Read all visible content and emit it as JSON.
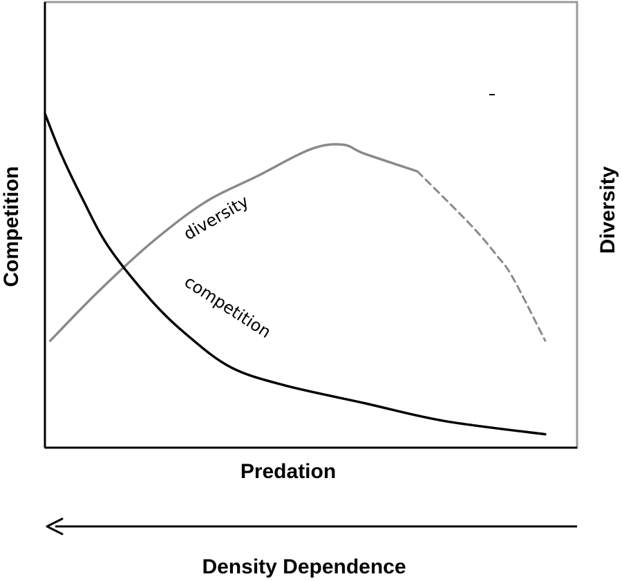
{
  "chart_data": {
    "type": "line",
    "title": "",
    "xlabel": "Predation",
    "ylabel_left": "Competition",
    "ylabel_right": "Diversity",
    "xlim": [
      0,
      1
    ],
    "ylim": [
      0,
      1
    ],
    "grid": false,
    "legend": "none",
    "annotation": "Density Dependence",
    "series": [
      {
        "name": "diversity",
        "color": "#8a8a8a",
        "x": [
          0.01,
          0.1,
          0.2,
          0.3,
          0.4,
          0.5,
          0.56,
          0.6,
          0.7,
          0.8,
          0.85,
          0.88,
          0.94
        ],
        "y": [
          0.24,
          0.35,
          0.46,
          0.55,
          0.61,
          0.67,
          0.68,
          0.66,
          0.62,
          0.5,
          0.43,
          0.38,
          0.24
        ]
      },
      {
        "name": "competition",
        "color": "#000000",
        "x": [
          0.0,
          0.03,
          0.07,
          0.12,
          0.2,
          0.27,
          0.35,
          0.45,
          0.6,
          0.75,
          0.94
        ],
        "y": [
          0.75,
          0.66,
          0.56,
          0.45,
          0.33,
          0.25,
          0.18,
          0.14,
          0.1,
          0.06,
          0.03
        ]
      }
    ],
    "diversity_dashed_from_x": 0.68
  }
}
